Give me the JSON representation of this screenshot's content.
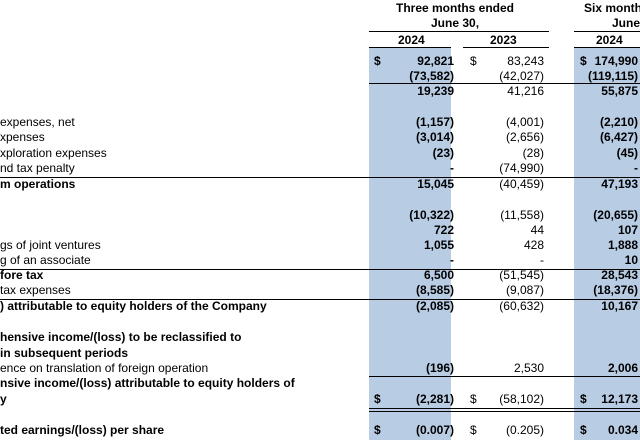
{
  "header": {
    "three_months_line1": "Three months ended",
    "three_months_line2": "June 30,",
    "six_months_line1": "Six month",
    "six_months_line2": "June",
    "year_2024_a": "2024",
    "year_2023": "2023",
    "year_2024_b": "2024"
  },
  "currency_symbol": "$",
  "rows": [
    {
      "label": "",
      "bold": false,
      "v2024": "92,821",
      "v2023": "83,243",
      "v6m": "174,990",
      "cur": true
    },
    {
      "label": "",
      "bold": false,
      "v2024": "(73,582)",
      "v2023": "(42,027)",
      "v6m": "(119,115)",
      "cur": false
    },
    {
      "label": "",
      "bold": false,
      "v2024": "19,239",
      "v2023": "41,216",
      "v6m": "55,875",
      "cur": false
    },
    {
      "label": "expenses, net",
      "bold": false,
      "v2024": "(1,157)",
      "v2023": "(4,001)",
      "v6m": "(2,210)",
      "cur": false
    },
    {
      "label": "xpenses",
      "bold": false,
      "v2024": "(3,014)",
      "v2023": "(2,656)",
      "v6m": "(6,427)",
      "cur": false
    },
    {
      "label": "xploration expenses",
      "bold": false,
      "v2024": "(23)",
      "v2023": "(28)",
      "v6m": "(45)",
      "cur": false
    },
    {
      "label": "nd tax penalty",
      "bold": false,
      "v2024": "-",
      "v2023": "(74,990)",
      "v6m": "-",
      "cur": false
    },
    {
      "label": "m operations",
      "bold": true,
      "v2024": "15,045",
      "v2023": "(40,459)",
      "v6m": "47,193",
      "cur": false
    },
    {
      "label": "",
      "bold": false,
      "v2024": "(10,322)",
      "v2023": "(11,558)",
      "v6m": "(20,655)",
      "cur": false
    },
    {
      "label": "",
      "bold": false,
      "v2024": "722",
      "v2023": "44",
      "v6m": "107",
      "cur": false
    },
    {
      "label": "gs of joint ventures",
      "bold": false,
      "v2024": "1,055",
      "v2023": "428",
      "v6m": "1,888",
      "cur": false
    },
    {
      "label": "g of an associate",
      "bold": false,
      "v2024": "-",
      "v2023": "-",
      "v6m": "10",
      "cur": false
    },
    {
      "label": "fore tax",
      "bold": true,
      "v2024": "6,500",
      "v2023": "(51,545)",
      "v6m": "28,543",
      "cur": false
    },
    {
      "label": "tax expenses",
      "bold": false,
      "v2024": "(8,585)",
      "v2023": "(9,087)",
      "v6m": "(18,376)",
      "cur": false
    },
    {
      "label": ") attributable to equity holders of the Company",
      "bold": true,
      "v2024": "(2,085)",
      "v2023": "(60,632)",
      "v6m": "10,167",
      "cur": false
    },
    {
      "label": "hensive income/(loss) to be reclassified to",
      "bold": true,
      "v2024": "",
      "v2023": "",
      "v6m": "",
      "cur": false
    },
    {
      "label": "in subsequent periods",
      "bold": true,
      "v2024": "",
      "v2023": "",
      "v6m": "",
      "cur": false
    },
    {
      "label": "ence on translation of foreign operation",
      "bold": false,
      "v2024": "(196)",
      "v2023": "2,530",
      "v6m": "2,006",
      "cur": false
    },
    {
      "label": "nsive income/(loss) attributable to equity holders of",
      "bold": true,
      "v2024": "",
      "v2023": "",
      "v6m": "",
      "cur": false
    },
    {
      "label": "y",
      "bold": true,
      "v2024": "(2,281)",
      "v2023": "(58,102)",
      "v6m": "12,173",
      "cur": true
    },
    {
      "label": "ted earnings/(loss) per share",
      "bold": true,
      "v2024": "(0.007)",
      "v2023": "(0.205)",
      "v6m": "0.034",
      "cur": true
    }
  ]
}
